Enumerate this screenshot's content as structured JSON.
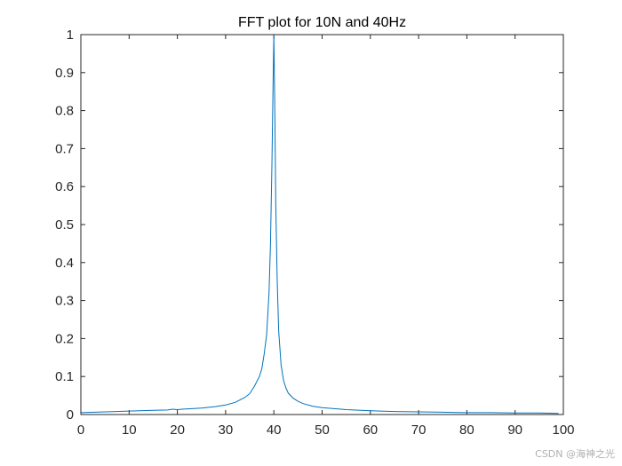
{
  "chart_data": {
    "type": "line",
    "title": "FFT plot for 10N and 40Hz",
    "xlabel": "",
    "ylabel": "",
    "xlim": [
      0,
      100
    ],
    "ylim": [
      0,
      1
    ],
    "xticks": [
      "0",
      "10",
      "20",
      "30",
      "40",
      "50",
      "60",
      "70",
      "80",
      "90",
      "100"
    ],
    "yticks": [
      "0",
      "0.1",
      "0.2",
      "0.3",
      "0.4",
      "0.5",
      "0.6",
      "0.7",
      "0.8",
      "0.9",
      "1"
    ],
    "grid": false,
    "series": [
      {
        "color": "#0072bd",
        "x": [
          0,
          5,
          10,
          15,
          18,
          19,
          20,
          21,
          25,
          28,
          30,
          32,
          34,
          35,
          36,
          37,
          37.5,
          38,
          38.5,
          39,
          39.3,
          39.6,
          39.8,
          40,
          40.2,
          40.4,
          40.7,
          41,
          41.5,
          42,
          42.5,
          43,
          44,
          45,
          46,
          48,
          50,
          55,
          60,
          65,
          70,
          75,
          80,
          85,
          90,
          95,
          99
        ],
        "y": [
          0.005,
          0.007,
          0.009,
          0.011,
          0.012,
          0.014,
          0.013,
          0.014,
          0.017,
          0.021,
          0.025,
          0.032,
          0.045,
          0.055,
          0.075,
          0.1,
          0.12,
          0.16,
          0.21,
          0.32,
          0.45,
          0.66,
          0.84,
          1.0,
          0.8,
          0.55,
          0.35,
          0.22,
          0.13,
          0.09,
          0.07,
          0.056,
          0.043,
          0.035,
          0.029,
          0.022,
          0.018,
          0.013,
          0.01,
          0.008,
          0.007,
          0.006,
          0.005,
          0.005,
          0.004,
          0.004,
          0.003
        ]
      }
    ]
  },
  "watermark": "CSDN @海神之光"
}
